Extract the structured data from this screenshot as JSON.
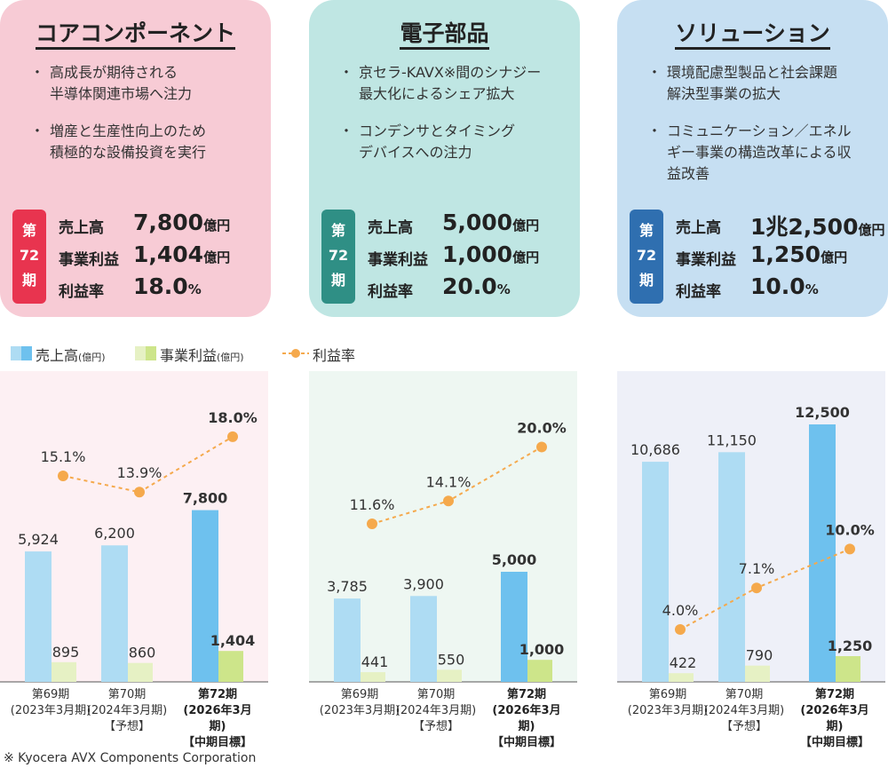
{
  "segments": [
    {
      "id": "core",
      "title": "コアコンポーネント",
      "bullets": [
        "高成長が期待される\n半導体関連市場へ注力",
        "増産と生産性向上のため\n積極的な設備投資を実行"
      ],
      "period_badge": [
        "第",
        "72",
        "期"
      ],
      "kpis": [
        {
          "label": "売上高",
          "value": "7,800",
          "unit": "億円"
        },
        {
          "label": "事業利益",
          "value": "1,404",
          "unit": "億円"
        },
        {
          "label": "利益率",
          "value": "18.0",
          "unit": "%"
        }
      ],
      "colors": {
        "card": "#f7cbd5",
        "badge": "#e8344f",
        "panel": "#fdf0f3"
      }
    },
    {
      "id": "electronic",
      "title": "電子部品",
      "bullets": [
        "京セラ-KAVX※間のシナジー\n最大化によるシェア拡大",
        "コンデンサとタイミング\nデバイスへの注力"
      ],
      "period_badge": [
        "第",
        "72",
        "期"
      ],
      "kpis": [
        {
          "label": "売上高",
          "value": "5,000",
          "unit": "億円"
        },
        {
          "label": "事業利益",
          "value": "1,000",
          "unit": "億円"
        },
        {
          "label": "利益率",
          "value": "20.0",
          "unit": "%"
        }
      ],
      "colors": {
        "card": "#bfe6e3",
        "badge": "#2f8f85",
        "panel": "#eef7f2"
      }
    },
    {
      "id": "solution",
      "title": "ソリューション",
      "bullets": [
        "環境配慮型製品と社会課題\n解決型事業の拡大",
        "コミュニケーション／エネル\nギー事業の構造改革による収\n益改善"
      ],
      "period_badge": [
        "第",
        "72",
        "期"
      ],
      "kpis": [
        {
          "label": "売上高",
          "value": "1兆2,500",
          "unit": "億円"
        },
        {
          "label": "事業利益",
          "value": "1,250",
          "unit": "億円"
        },
        {
          "label": "利益率",
          "value": "10.0",
          "unit": "%"
        }
      ],
      "colors": {
        "card": "#c6dff2",
        "badge": "#2f6fb0",
        "panel": "#eef0f8"
      }
    }
  ],
  "legend": [
    {
      "label": "売上高",
      "unit": "(億円)"
    },
    {
      "label": "事業利益",
      "unit": "(億円)"
    },
    {
      "label": "利益率"
    }
  ],
  "chart_data": [
    {
      "type": "bar",
      "categories": [
        "第69期\n(2023年3月期)",
        "第70期\n(2024年3月期)\n【予想】",
        "第72期\n(2026年3月期)\n【中期目標】"
      ],
      "series": [
        {
          "name": "売上高",
          "values": [
            5924,
            6200,
            7800
          ],
          "labels": [
            "5,924",
            "6,200",
            "7,800"
          ]
        },
        {
          "name": "事業利益",
          "values": [
            895,
            860,
            1404
          ],
          "labels": [
            "895",
            "860",
            "1,404"
          ]
        },
        {
          "name": "利益率",
          "values": [
            15.1,
            13.9,
            18.0
          ],
          "labels": [
            "15.1%",
            "13.9%",
            "18.0%"
          ]
        }
      ]
    },
    {
      "type": "bar",
      "categories": [
        "第69期\n(2023年3月期)",
        "第70期\n(2024年3月期)\n【予想】",
        "第72期\n(2026年3月期)\n【中期目標】"
      ],
      "series": [
        {
          "name": "売上高",
          "values": [
            3785,
            3900,
            5000
          ],
          "labels": [
            "3,785",
            "3,900",
            "5,000"
          ]
        },
        {
          "name": "事業利益",
          "values": [
            441,
            550,
            1000
          ],
          "labels": [
            "441",
            "550",
            "1,000"
          ]
        },
        {
          "name": "利益率",
          "values": [
            11.6,
            14.1,
            20.0
          ],
          "labels": [
            "11.6%",
            "14.1%",
            "20.0%"
          ]
        }
      ]
    },
    {
      "type": "bar",
      "categories": [
        "第69期\n(2023年3月期)",
        "第70期\n(2024年3月期)\n【予想】",
        "第72期\n(2026年3月期)\n【中期目標】"
      ],
      "series": [
        {
          "name": "売上高",
          "values": [
            10686,
            11150,
            12500
          ],
          "labels": [
            "10,686",
            "11,150",
            "12,500"
          ]
        },
        {
          "name": "事業利益",
          "values": [
            422,
            790,
            1250
          ],
          "labels": [
            "422",
            "790",
            "1,250"
          ]
        },
        {
          "name": "利益率",
          "values": [
            4.0,
            7.1,
            10.0
          ],
          "labels": [
            "4.0%",
            "7.1%",
            "10.0%"
          ]
        }
      ]
    }
  ],
  "colors": {
    "sales_past": "#aedcf3",
    "sales_target": "#6ec1ee",
    "profit_past": "#e6f1c4",
    "profit_target": "#cde58a",
    "margin": "#f5a94c",
    "axis": "#555555"
  },
  "footnote": "※ Kyocera AVX Components Corporation"
}
